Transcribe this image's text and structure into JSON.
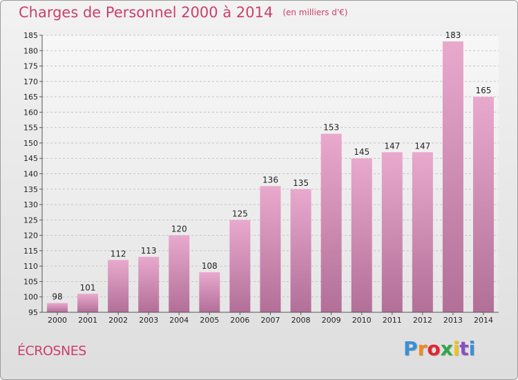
{
  "header": {
    "title": "Charges de Personnel 2000 à 2014",
    "subtitle": "(en milliers d'€)"
  },
  "footer": {
    "city": "ÉCROSNES",
    "brand": "Proxiti",
    "brand_colors": [
      "#3a8fd9",
      "#f08a1f",
      "#e2262e",
      "#2fa84a",
      "#f0c419",
      "#8a4fc2",
      "#3a8fd9"
    ]
  },
  "chart_data": {
    "type": "bar",
    "title": "Charges de Personnel 2000 à 2014",
    "subtitle": "(en milliers d'€)",
    "categories": [
      "2000",
      "2001",
      "2002",
      "2003",
      "2004",
      "2005",
      "2006",
      "2007",
      "2008",
      "2009",
      "2010",
      "2011",
      "2012",
      "2013",
      "2014"
    ],
    "values": [
      98,
      101,
      112,
      113,
      120,
      108,
      125,
      136,
      135,
      153,
      145,
      147,
      147,
      183,
      165
    ],
    "xlabel": "",
    "ylabel": "",
    "ylim": [
      95,
      185
    ],
    "yticks": [
      95,
      100,
      105,
      110,
      115,
      120,
      125,
      130,
      135,
      140,
      145,
      150,
      155,
      160,
      165,
      170,
      175,
      180,
      185
    ],
    "grid": true,
    "bar_color_top": "#e9a9cd",
    "bar_color_bottom": "#b26f98"
  }
}
